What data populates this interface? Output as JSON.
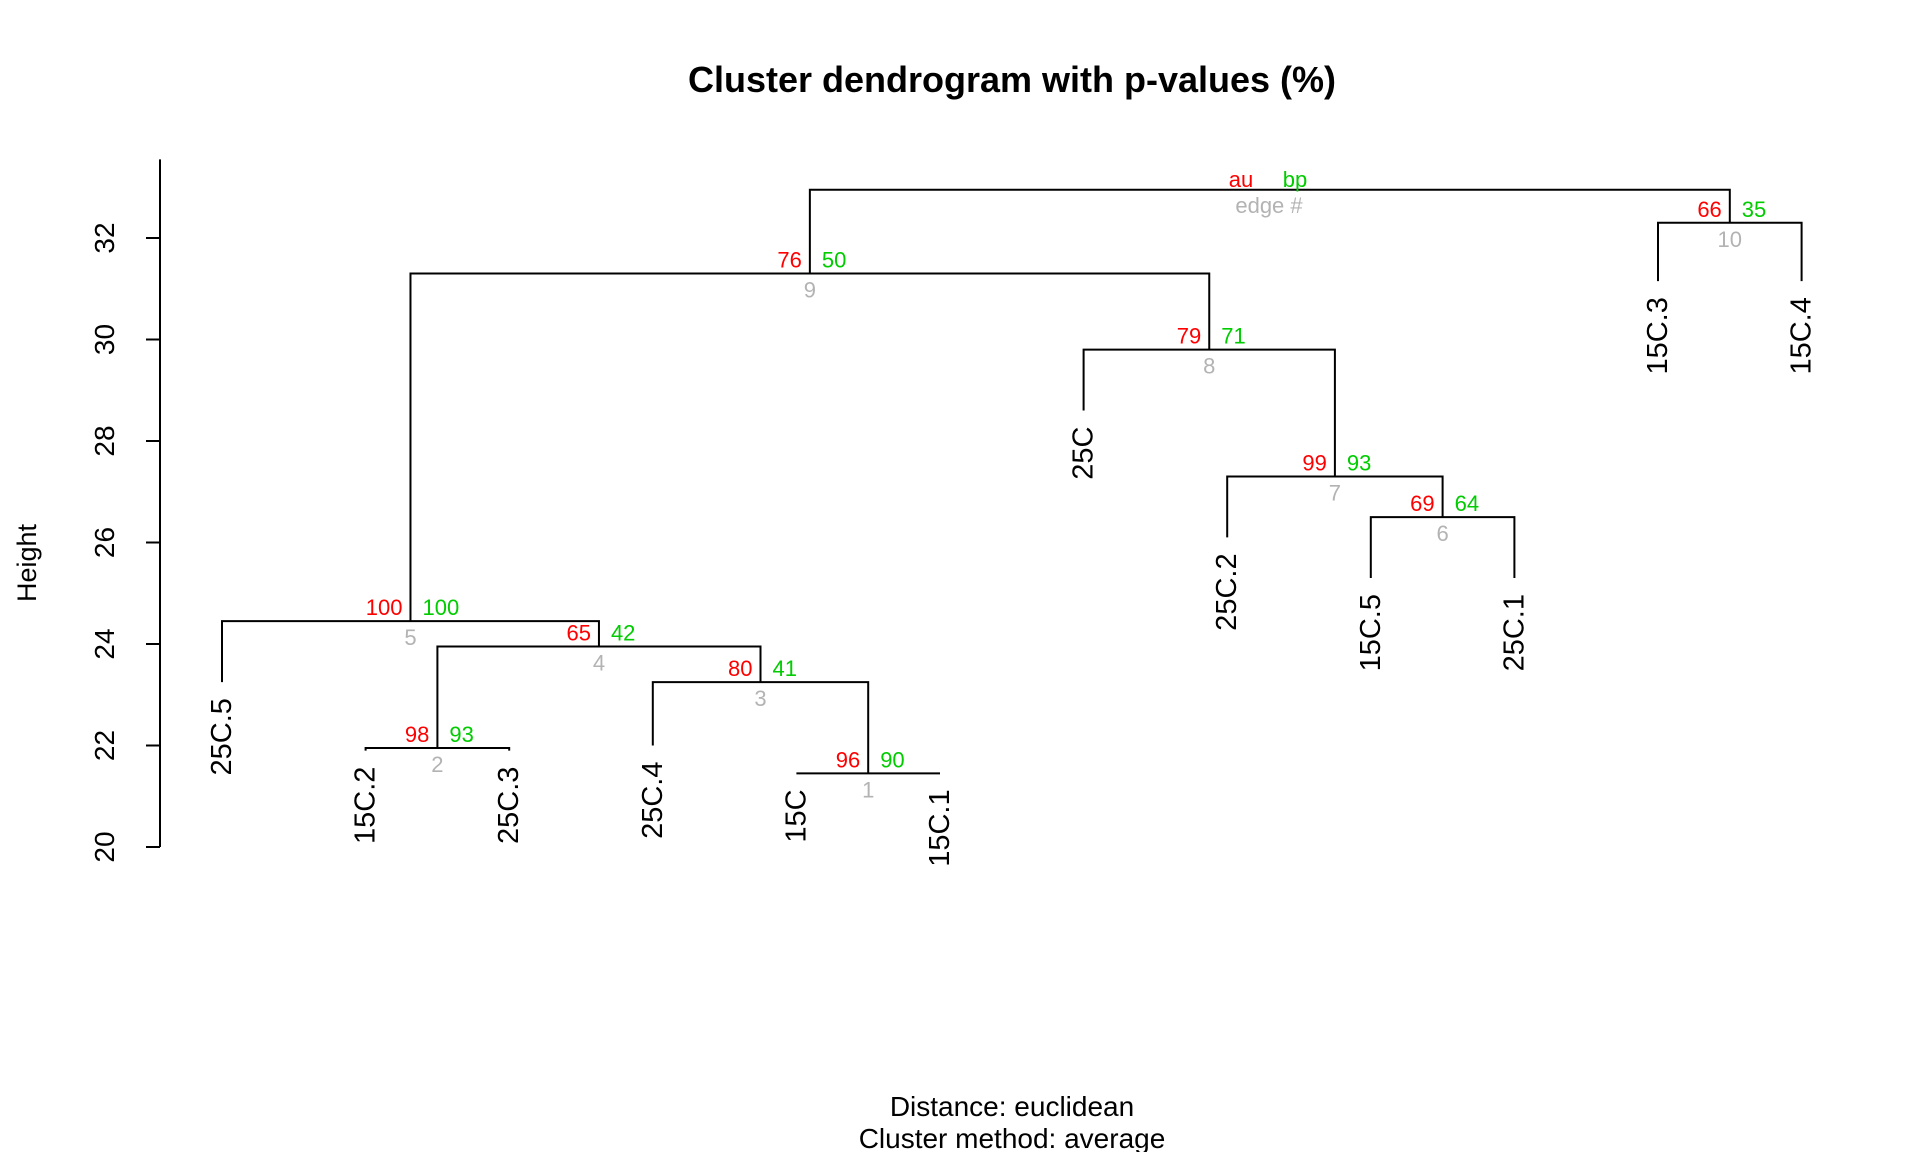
{
  "chart_data": {
    "type": "dendrogram",
    "title": "Cluster dendrogram with p-values (%)",
    "ylabel": "Height",
    "subtitle_lines": [
      "Distance:  euclidean",
      "Cluster method: average"
    ],
    "ylim": [
      20,
      33
    ],
    "yticks": [
      20,
      22,
      24,
      26,
      28,
      30,
      32
    ],
    "legend": {
      "au": "au",
      "bp": "bp",
      "edge": "edge #"
    },
    "colors": {
      "au": "#ff0000",
      "bp": "#00cc00",
      "edge": "#b3b3b3",
      "line": "#000000"
    },
    "leaves": [
      {
        "label": "25C.5",
        "pos": 1,
        "bottom": 23.25
      },
      {
        "label": "15C.2",
        "pos": 2,
        "bottom": 21.9
      },
      {
        "label": "25C.3",
        "pos": 3,
        "bottom": 21.9
      },
      {
        "label": "25C.4",
        "pos": 4,
        "bottom": 22.0
      },
      {
        "label": "15C",
        "pos": 5,
        "bottom": 21.45
      },
      {
        "label": "15C.1",
        "pos": 6,
        "bottom": 21.45
      },
      {
        "label": "25C",
        "pos": 7,
        "bottom": 28.6
      },
      {
        "label": "25C.2",
        "pos": 8,
        "bottom": 26.1
      },
      {
        "label": "15C.5",
        "pos": 9,
        "bottom": 25.3
      },
      {
        "label": "25C.1",
        "pos": 10,
        "bottom": 25.3
      },
      {
        "label": "15C.3",
        "pos": 11,
        "bottom": 31.15
      },
      {
        "label": "15C.4",
        "pos": 12,
        "bottom": 31.15
      }
    ],
    "merges": [
      {
        "edge": "1",
        "left": "L5",
        "right": "L6",
        "height": 21.45,
        "au": "96",
        "bp": "90"
      },
      {
        "edge": "2",
        "left": "L2",
        "right": "L3",
        "height": 21.95,
        "au": "98",
        "bp": "93"
      },
      {
        "edge": "3",
        "left": "L4",
        "right": "M1",
        "height": 23.25,
        "au": "80",
        "bp": "41"
      },
      {
        "edge": "4",
        "left": "M2",
        "right": "M3",
        "height": 23.95,
        "au": "65",
        "bp": "42"
      },
      {
        "edge": "5",
        "left": "L1",
        "right": "M4",
        "height": 24.45,
        "au": "100",
        "bp": "100"
      },
      {
        "edge": "6",
        "left": "L9",
        "right": "L10",
        "height": 26.5,
        "au": "69",
        "bp": "64"
      },
      {
        "edge": "7",
        "left": "L8",
        "right": "M6",
        "height": 27.3,
        "au": "99",
        "bp": "93"
      },
      {
        "edge": "8",
        "left": "L7",
        "right": "M7",
        "height": 29.8,
        "au": "79",
        "bp": "71"
      },
      {
        "edge": "9",
        "left": "M5",
        "right": "M8",
        "height": 31.3,
        "au": "76",
        "bp": "50"
      },
      {
        "edge": "10",
        "left": "L11",
        "right": "L12",
        "height": 32.3,
        "au": "66",
        "bp": "35"
      },
      {
        "edge": "",
        "left": "M9",
        "right": "M10",
        "height": 32.95,
        "au": "",
        "bp": ""
      }
    ]
  }
}
